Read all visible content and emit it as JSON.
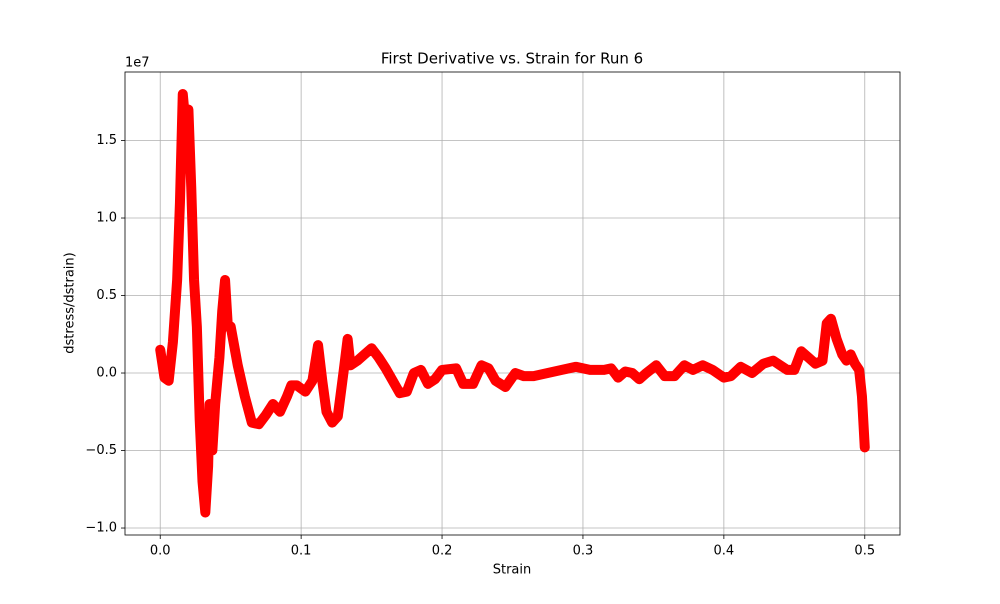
{
  "chart_data": {
    "type": "line",
    "title": "First Derivative vs. Strain for Run 6",
    "xlabel": "Strain",
    "ylabel": "dstress/dstrain)",
    "y_offset_label": "1e7",
    "color": "#ff0000",
    "grid": true,
    "xlim": [
      -0.025,
      0.525
    ],
    "xticks": [
      {
        "value": 0,
        "label": "0.0"
      },
      0.1,
      0.2,
      0.3,
      0.4,
      0.5
    ],
    "ylim": [
      -1.045,
      1.942
    ],
    "yticks": [
      {
        "value": -1,
        "label": "−1.0"
      },
      {
        "value": -0.5,
        "label": "−0.5"
      },
      {
        "value": 0,
        "label": "0.0"
      },
      {
        "value": 0.5,
        "label": "0.5"
      },
      {
        "value": 1,
        "label": "1.0"
      },
      {
        "value": 1.5,
        "label": "1.5"
      }
    ],
    "x": [
      0.0,
      0.003,
      0.006,
      0.009,
      0.012,
      0.014,
      0.016,
      0.018,
      0.02,
      0.022,
      0.024,
      0.026,
      0.028,
      0.03,
      0.032,
      0.034,
      0.035,
      0.037,
      0.039,
      0.042,
      0.044,
      0.046,
      0.048,
      0.05,
      0.055,
      0.06,
      0.065,
      0.07,
      0.075,
      0.08,
      0.085,
      0.09,
      0.093,
      0.097,
      0.103,
      0.108,
      0.112,
      0.115,
      0.118,
      0.122,
      0.126,
      0.13,
      0.133,
      0.135,
      0.14,
      0.145,
      0.15,
      0.155,
      0.16,
      0.165,
      0.17,
      0.175,
      0.18,
      0.185,
      0.19,
      0.195,
      0.2,
      0.21,
      0.215,
      0.222,
      0.228,
      0.233,
      0.238,
      0.245,
      0.252,
      0.258,
      0.265,
      0.275,
      0.285,
      0.295,
      0.305,
      0.315,
      0.32,
      0.325,
      0.33,
      0.335,
      0.34,
      0.345,
      0.352,
      0.358,
      0.365,
      0.372,
      0.378,
      0.385,
      0.392,
      0.4,
      0.405,
      0.412,
      0.42,
      0.428,
      0.435,
      0.44,
      0.445,
      0.45,
      0.455,
      0.46,
      0.465,
      0.47,
      0.473,
      0.476,
      0.48,
      0.484,
      0.487,
      0.49,
      0.493,
      0.496,
      0.498,
      0.5
    ],
    "values": [
      0.15,
      -0.03,
      -0.05,
      0.2,
      0.6,
      1.1,
      1.8,
      1.6,
      1.7,
      1.2,
      0.6,
      0.3,
      -0.3,
      -0.7,
      -0.9,
      -0.6,
      -0.2,
      -0.5,
      -0.2,
      0.1,
      0.4,
      0.6,
      0.3,
      0.3,
      0.05,
      -0.15,
      -0.32,
      -0.33,
      -0.27,
      -0.2,
      -0.25,
      -0.15,
      -0.08,
      -0.08,
      -0.12,
      -0.05,
      0.18,
      -0.05,
      -0.25,
      -0.32,
      -0.28,
      0.0,
      0.22,
      0.05,
      0.08,
      0.12,
      0.16,
      0.1,
      0.03,
      -0.05,
      -0.13,
      -0.12,
      0.0,
      0.02,
      -0.07,
      -0.04,
      0.02,
      0.03,
      -0.07,
      -0.07,
      0.05,
      0.03,
      -0.05,
      -0.09,
      0.0,
      -0.02,
      -0.02,
      0.0,
      0.02,
      0.04,
      0.02,
      0.02,
      0.03,
      -0.03,
      0.01,
      0.0,
      -0.04,
      0.0,
      0.05,
      -0.02,
      -0.02,
      0.05,
      0.02,
      0.05,
      0.02,
      -0.03,
      -0.02,
      0.04,
      0.0,
      0.06,
      0.08,
      0.05,
      0.02,
      0.02,
      0.14,
      0.1,
      0.06,
      0.08,
      0.32,
      0.35,
      0.22,
      0.12,
      0.08,
      0.12,
      0.06,
      0.02,
      -0.15,
      -0.48
    ]
  }
}
